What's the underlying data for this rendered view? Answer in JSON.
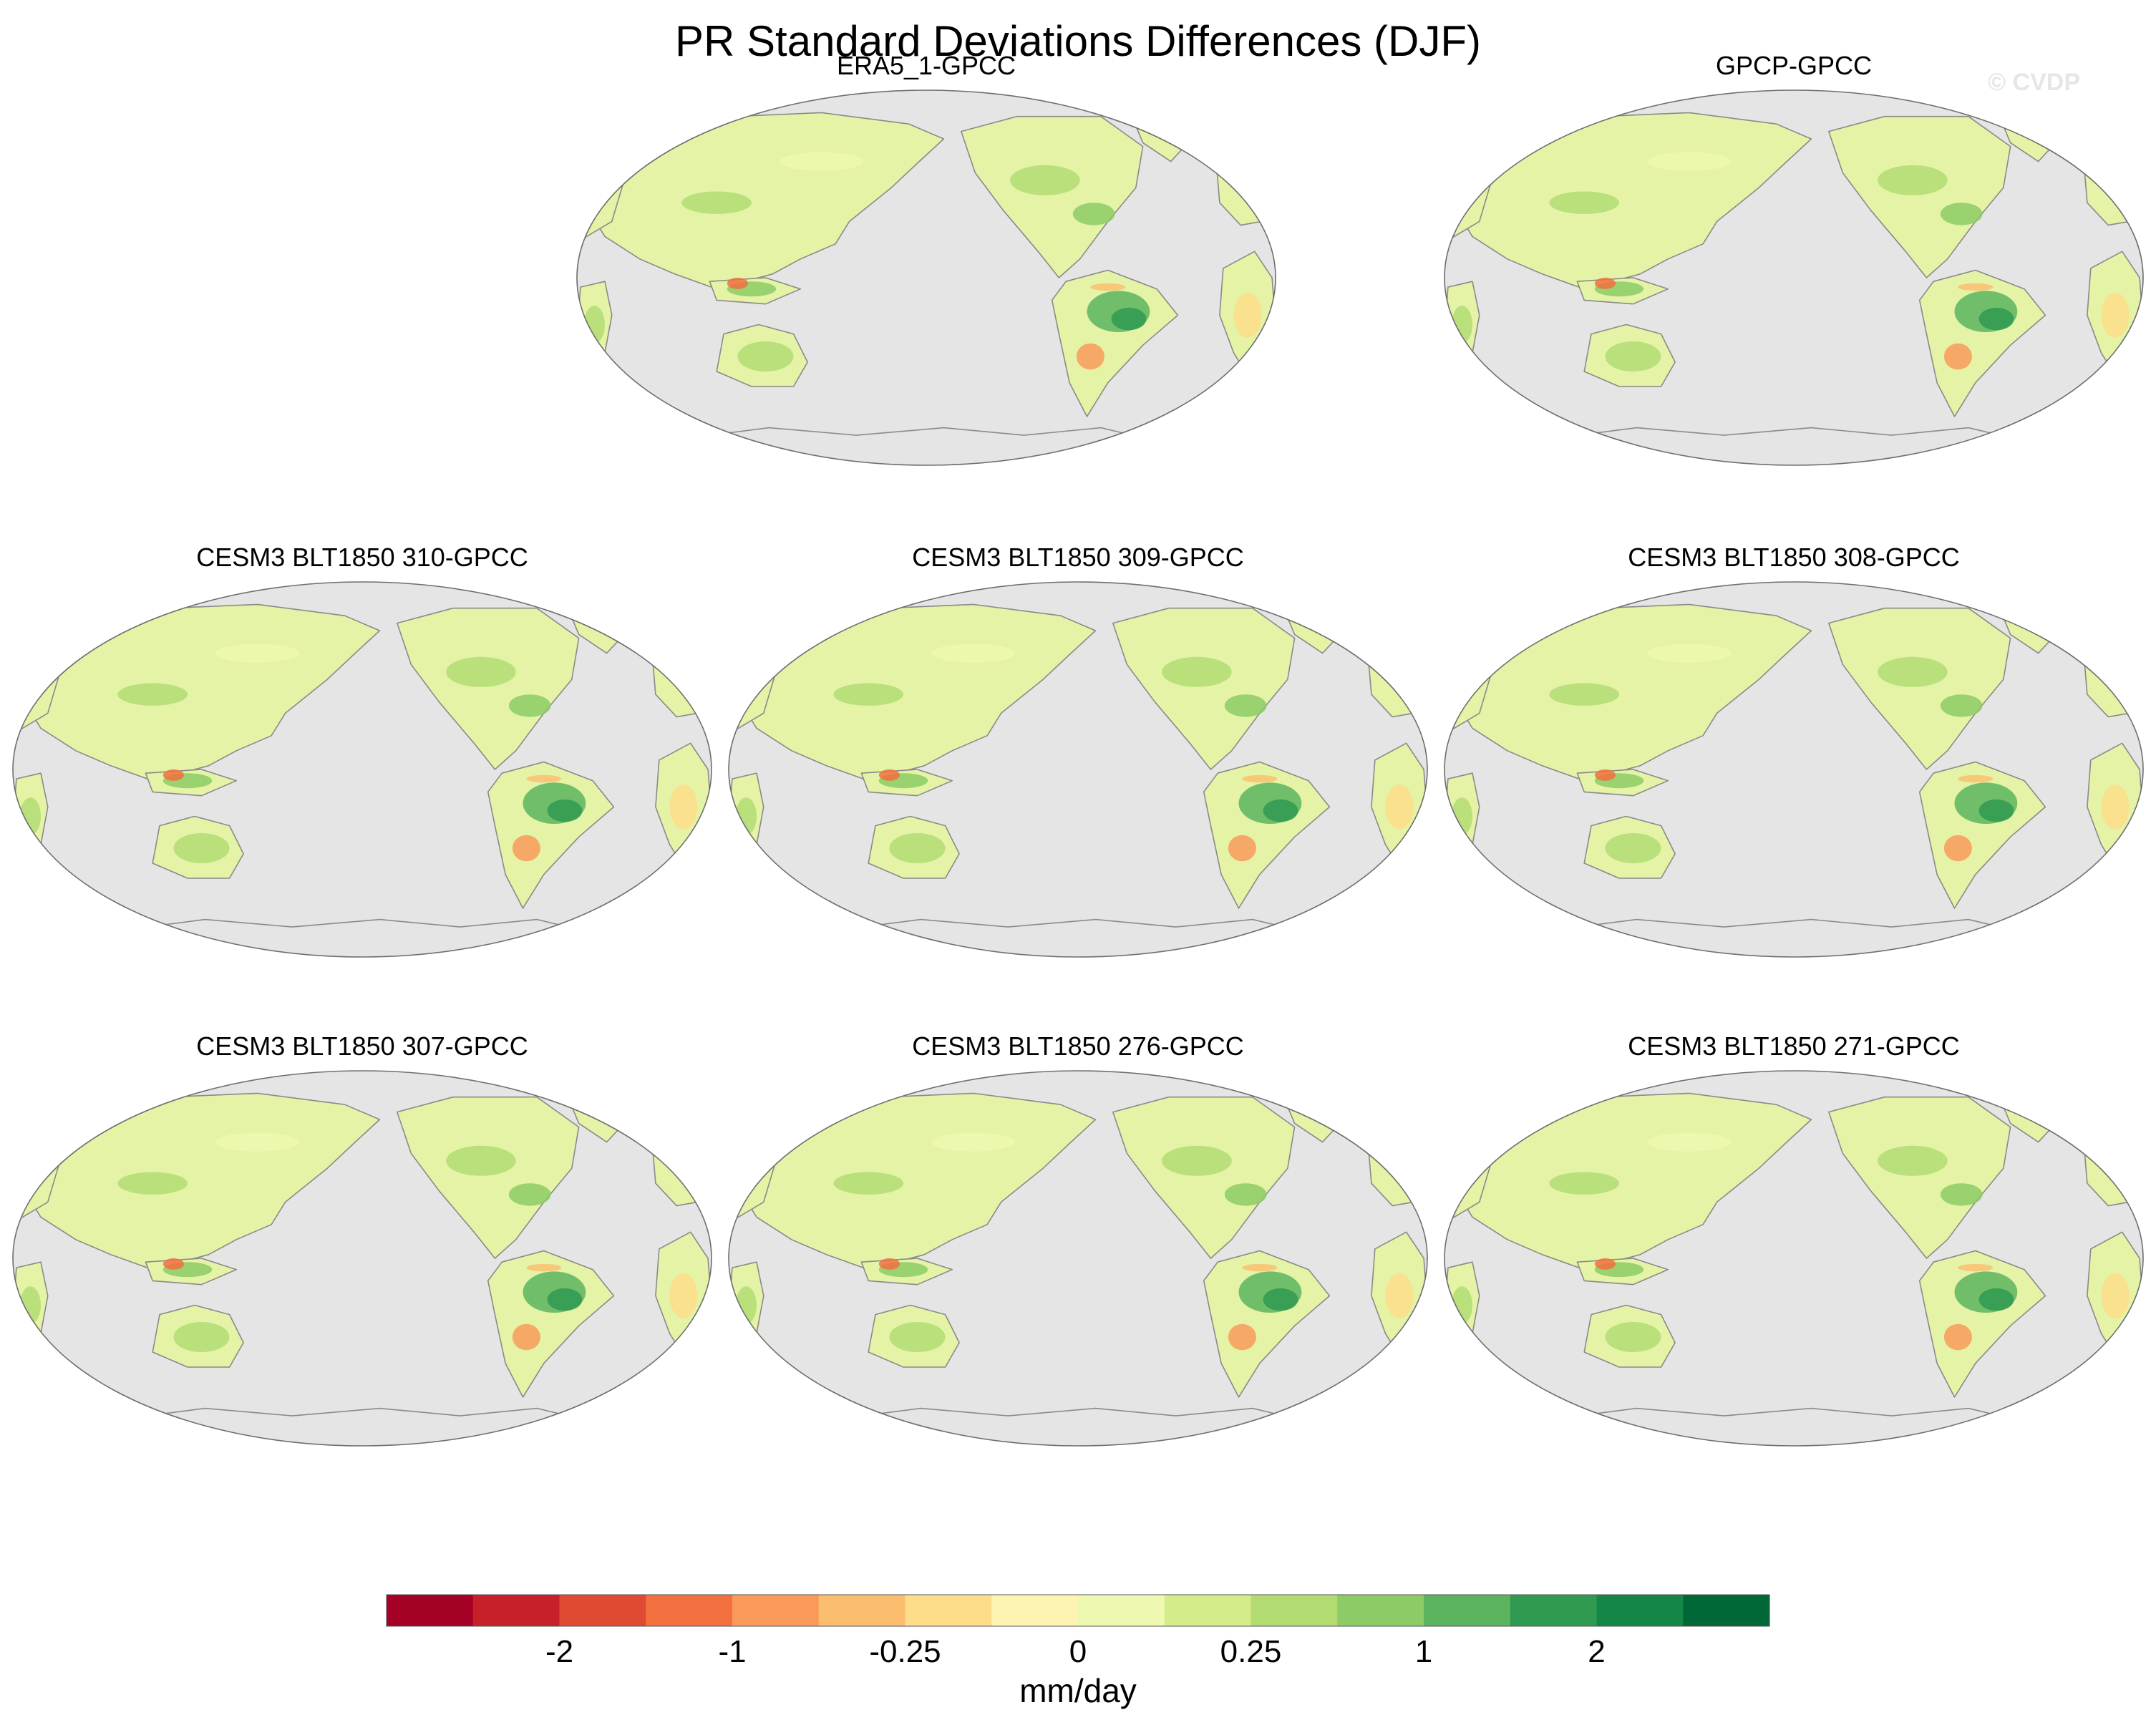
{
  "chart_data": {
    "type": "map-panels",
    "title": "PR Standard Deviations Differences (DJF)",
    "watermark": "© CVDP",
    "projection": "Robinson (Pacific-centered)",
    "panels": [
      {
        "title": "ERA5_1-GPCC"
      },
      {
        "title": "GPCP-GPCC"
      },
      {
        "title": "CESM3 BLT1850 310-GPCC"
      },
      {
        "title": "CESM3 BLT1850 309-GPCC"
      },
      {
        "title": "CESM3 BLT1850 308-GPCC"
      },
      {
        "title": "CESM3 BLT1850 307-GPCC"
      },
      {
        "title": "CESM3 BLT1850 276-GPCC"
      },
      {
        "title": "CESM3 BLT1850 271-GPCC"
      }
    ],
    "colorbar": {
      "units": "mm/day",
      "tick_labels": [
        "-2",
        "-1",
        "-0.25",
        "0",
        "0.25",
        "1",
        "2"
      ],
      "colors": [
        "#a50026",
        "#c8202a",
        "#e04a33",
        "#f2703f",
        "#f99a5a",
        "#fbbe6f",
        "#fddd8a",
        "#fdf4b2",
        "#eef8b0",
        "#d4ec8a",
        "#b2dc72",
        "#8ccb65",
        "#5db45f",
        "#2f9a50",
        "#148646",
        "#006837"
      ]
    },
    "ocean_color": "#e5e5e5",
    "coast_color": "#8a8a8a"
  }
}
